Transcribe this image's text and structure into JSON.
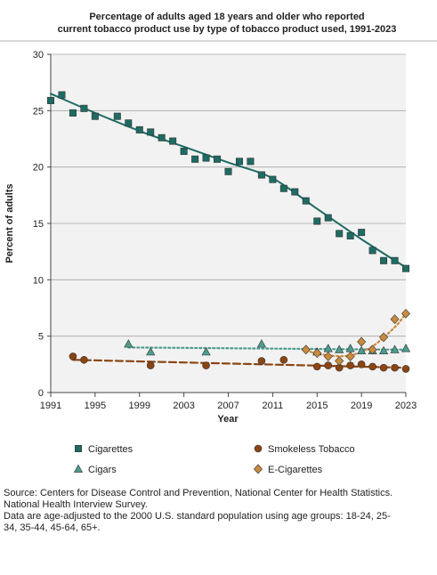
{
  "chart_data": {
    "type": "scatter",
    "title_lines": [
      "Percentage of adults aged 18 years and older who reported",
      "current tobacco product use by type of tobacco product used, 1991-2023"
    ],
    "xlabel": "Year",
    "ylabel": "Percent of adults",
    "xlim": [
      1991,
      2023
    ],
    "ylim": [
      0,
      30
    ],
    "x_ticks": [
      1991,
      1995,
      1999,
      2003,
      2007,
      2011,
      2015,
      2019,
      2023
    ],
    "y_ticks": [
      0,
      5,
      10,
      15,
      20,
      25,
      30
    ],
    "grid": "horizontal",
    "legend_position": "bottom",
    "series": [
      {
        "name": "Cigarettes",
        "marker": "square",
        "color": "#1e6b63",
        "trend_style": "solid",
        "points": [
          [
            1991,
            25.9
          ],
          [
            1992,
            26.4
          ],
          [
            1993,
            24.8
          ],
          [
            1994,
            25.2
          ],
          [
            1995,
            24.5
          ],
          [
            1997,
            24.5
          ],
          [
            1998,
            23.9
          ],
          [
            1999,
            23.3
          ],
          [
            2000,
            23.1
          ],
          [
            2001,
            22.6
          ],
          [
            2002,
            22.3
          ],
          [
            2003,
            21.4
          ],
          [
            2004,
            20.7
          ],
          [
            2005,
            20.8
          ],
          [
            2006,
            20.7
          ],
          [
            2007,
            19.6
          ],
          [
            2008,
            20.5
          ],
          [
            2009,
            20.5
          ],
          [
            2010,
            19.3
          ],
          [
            2011,
            18.9
          ],
          [
            2012,
            18.1
          ],
          [
            2013,
            17.8
          ],
          [
            2014,
            17.0
          ],
          [
            2015,
            15.2
          ],
          [
            2016,
            15.5
          ],
          [
            2017,
            14.1
          ],
          [
            2018,
            13.9
          ],
          [
            2019,
            14.2
          ],
          [
            2020,
            12.6
          ],
          [
            2021,
            11.7
          ],
          [
            2022,
            11.7
          ],
          [
            2023,
            11.0
          ]
        ],
        "trend": [
          [
            1991,
            26.5
          ],
          [
            1995,
            24.8
          ],
          [
            1999,
            23.2
          ],
          [
            2003,
            21.8
          ],
          [
            2007,
            20.4
          ],
          [
            2011,
            19.0
          ],
          [
            2015,
            16.3
          ],
          [
            2019,
            13.6
          ],
          [
            2023,
            11.1
          ]
        ]
      },
      {
        "name": "Smokeless Tobacco",
        "marker": "circle",
        "color": "#8b4513",
        "trend_style": "dashed",
        "points": [
          [
            1993,
            3.2
          ],
          [
            1994,
            2.9
          ],
          [
            2000,
            2.4
          ],
          [
            2005,
            2.4
          ],
          [
            2010,
            2.8
          ],
          [
            2012,
            2.9
          ],
          [
            2015,
            2.3
          ],
          [
            2016,
            2.4
          ],
          [
            2017,
            2.2
          ],
          [
            2018,
            2.4
          ],
          [
            2019,
            2.5
          ],
          [
            2020,
            2.3
          ],
          [
            2021,
            2.2
          ],
          [
            2022,
            2.2
          ],
          [
            2023,
            2.1
          ]
        ],
        "trend": [
          [
            1993,
            2.9
          ],
          [
            2023,
            2.2
          ]
        ]
      },
      {
        "name": "Cigars",
        "marker": "triangle",
        "color": "#4d9c8f",
        "trend_style": "dotted",
        "points": [
          [
            1998,
            4.3
          ],
          [
            2000,
            3.6
          ],
          [
            2005,
            3.6
          ],
          [
            2010,
            4.3
          ],
          [
            2015,
            3.6
          ],
          [
            2016,
            3.9
          ],
          [
            2017,
            3.8
          ],
          [
            2018,
            3.9
          ],
          [
            2019,
            3.7
          ],
          [
            2020,
            3.7
          ],
          [
            2021,
            3.7
          ],
          [
            2022,
            3.8
          ],
          [
            2023,
            3.9
          ]
        ],
        "trend": [
          [
            1998,
            4.0
          ],
          [
            2023,
            3.8
          ]
        ]
      },
      {
        "name": "E-Cigarettes",
        "marker": "diamond",
        "color": "#c88a3e",
        "trend_style": "dotted",
        "points": [
          [
            2014,
            3.8
          ],
          [
            2015,
            3.5
          ],
          [
            2016,
            3.2
          ],
          [
            2017,
            2.8
          ],
          [
            2018,
            3.2
          ],
          [
            2019,
            4.5
          ],
          [
            2020,
            3.8
          ],
          [
            2021,
            4.9
          ],
          [
            2022,
            6.5
          ],
          [
            2023,
            7.0
          ]
        ],
        "trend": [
          [
            2014,
            3.7
          ],
          [
            2016,
            3.3
          ],
          [
            2018,
            3.3
          ],
          [
            2020,
            4.1
          ],
          [
            2022,
            5.8
          ],
          [
            2023,
            7.0
          ]
        ]
      }
    ]
  },
  "source_note_lines": [
    "Source: Centers for Disease Control and Prevention, National Center for Health Statistics.",
    "National Health Interview Survey.",
    "Data are age-adjusted to the 2000 U.S. standard population using age groups: 18-24, 25-",
    "34, 35-44, 45-64, 65+."
  ]
}
